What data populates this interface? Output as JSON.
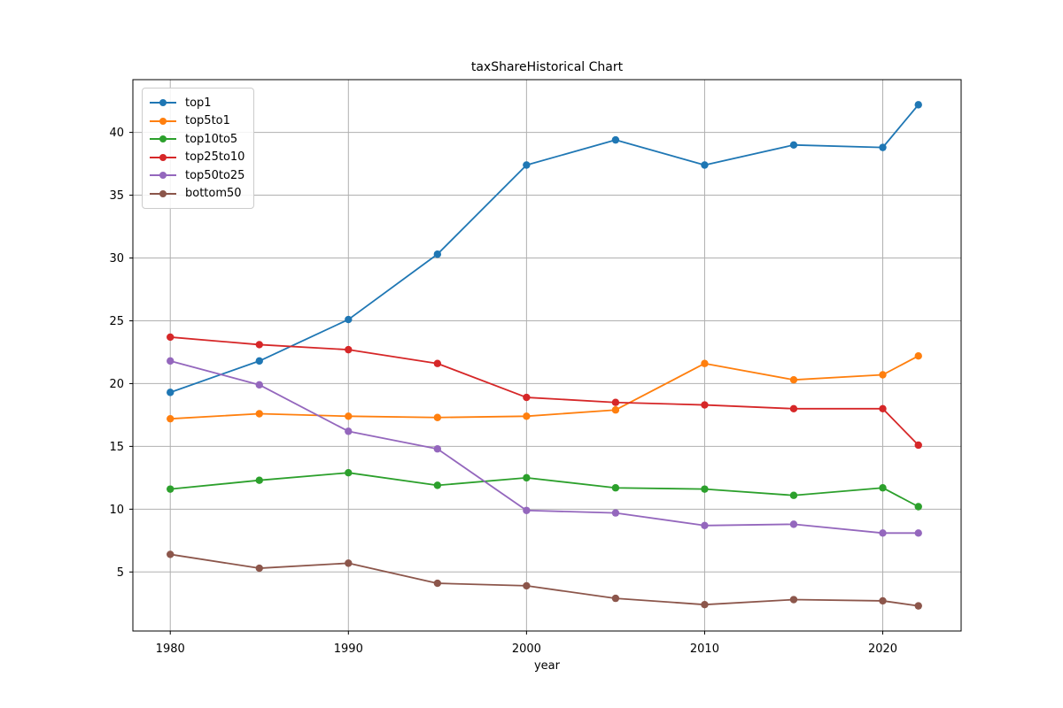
{
  "figure": {
    "background": "#ffffff"
  },
  "chart_data": {
    "type": "line",
    "title": "taxShareHistorical Chart",
    "xlabel": "year",
    "ylabel": "",
    "x": [
      1980,
      1985,
      1990,
      1995,
      2000,
      2005,
      2010,
      2015,
      2020,
      2022
    ],
    "series": [
      {
        "name": "top1",
        "color": "#1f77b4",
        "values": [
          19.3,
          21.8,
          25.1,
          30.3,
          37.4,
          39.4,
          37.4,
          39.0,
          38.8,
          42.2
        ]
      },
      {
        "name": "top5to1",
        "color": "#ff7f0e",
        "values": [
          17.2,
          17.6,
          17.4,
          17.3,
          17.4,
          17.9,
          21.6,
          20.3,
          20.7,
          22.2
        ]
      },
      {
        "name": "top10to5",
        "color": "#2ca02c",
        "values": [
          11.6,
          12.3,
          12.9,
          11.9,
          12.5,
          11.7,
          11.6,
          11.1,
          11.7,
          10.2
        ]
      },
      {
        "name": "top25to10",
        "color": "#d62728",
        "values": [
          23.7,
          23.1,
          22.7,
          21.6,
          18.9,
          18.5,
          18.3,
          18.0,
          18.0,
          15.1
        ]
      },
      {
        "name": "top50to25",
        "color": "#9467bd",
        "values": [
          21.8,
          19.9,
          16.2,
          14.8,
          9.9,
          9.7,
          8.7,
          8.8,
          8.1,
          8.1
        ]
      },
      {
        "name": "bottom50",
        "color": "#8c564b",
        "values": [
          6.4,
          5.3,
          5.7,
          4.1,
          3.9,
          2.9,
          2.4,
          2.8,
          2.7,
          2.3
        ]
      }
    ],
    "xticks": [
      1980,
      1990,
      2000,
      2010,
      2020
    ],
    "yticks": [
      5,
      10,
      15,
      20,
      25,
      30,
      35,
      40
    ],
    "xlim": [
      1977.9,
      2024.4
    ],
    "ylim": [
      0.3,
      44.2
    ],
    "grid": true,
    "grid_color": "#b0b0b0",
    "axis_color": "#000000",
    "text_color": "#000000",
    "legend_position": "upper left",
    "marker": "circle"
  }
}
